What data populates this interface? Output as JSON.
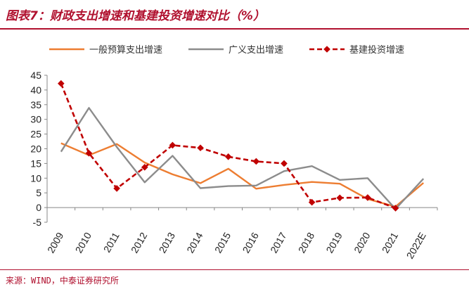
{
  "figure": {
    "title": "图表7：财政支出增速和基建投资增速对比（%）",
    "source": "来源：WIND，中泰证券研究所"
  },
  "colors": {
    "accent": "#b0102e",
    "series": [
      "#ed7d31",
      "#8c8c8c",
      "#c00000"
    ]
  },
  "chart_data": {
    "type": "line",
    "title": "财政支出增速和基建投资增速对比（%）",
    "xlabel": "",
    "ylabel": "",
    "categories": [
      "2009",
      "2010",
      "2011",
      "2012",
      "2013",
      "2014",
      "2015",
      "2016",
      "2017",
      "2018",
      "2019",
      "2020",
      "2021",
      "2022E"
    ],
    "ylim": [
      -5,
      45
    ],
    "yticks": [
      -5,
      0,
      5,
      10,
      15,
      20,
      25,
      30,
      35,
      40,
      45
    ],
    "grid": false,
    "legend": "top",
    "series": [
      {
        "name": "一般预算支出增速",
        "style": "solid",
        "color": "#ed7d31",
        "values": [
          21.9,
          17.8,
          21.6,
          15.3,
          11.3,
          8.3,
          13.2,
          6.4,
          7.7,
          8.7,
          8.1,
          2.9,
          0.3,
          8.4
        ]
      },
      {
        "name": "广义支出增速",
        "style": "solid",
        "color": "#8c8c8c",
        "values": [
          19.0,
          33.9,
          20.6,
          8.6,
          17.6,
          6.6,
          7.3,
          7.5,
          12.4,
          14.1,
          9.4,
          10.0,
          -0.5,
          9.8
        ]
      },
      {
        "name": "基建投资增速",
        "style": "dashed-marker",
        "color": "#c00000",
        "values": [
          42.2,
          18.5,
          6.5,
          13.7,
          21.2,
          20.3,
          17.3,
          15.7,
          15.0,
          1.8,
          3.3,
          3.4,
          -0.2,
          null
        ]
      }
    ]
  }
}
